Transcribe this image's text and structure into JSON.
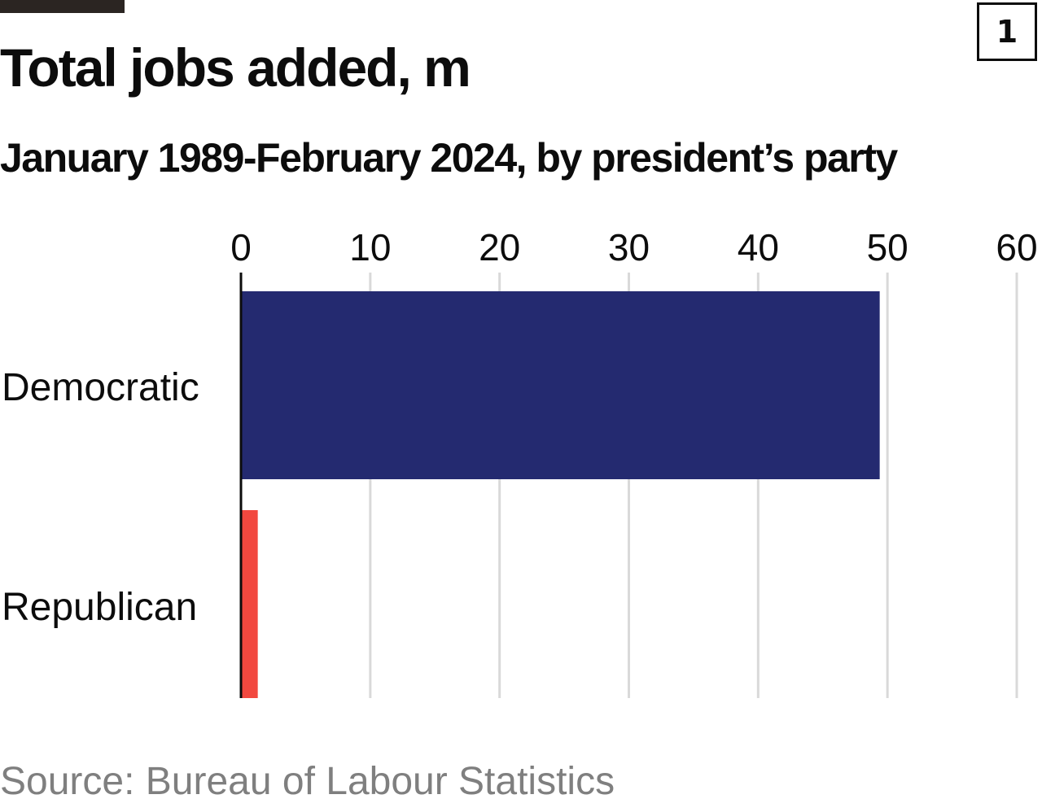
{
  "header": {
    "title": "Total jobs added, m",
    "subtitle": "January 1989-February 2024, by president’s party",
    "chart_number": "1"
  },
  "footer": {
    "source": "Source: Bureau of Labour Statistics"
  },
  "colors": {
    "democratic": "#242a70",
    "republican": "#f2483f",
    "grid": "#d9d9d9",
    "axis": "#0c0c0c",
    "rule": "#2b2522"
  },
  "chart_data": {
    "type": "bar",
    "orientation": "horizontal",
    "title": "Total jobs added, m",
    "subtitle": "January 1989-February 2024, by president’s party",
    "categories": [
      "Democratic",
      "Republican"
    ],
    "values": [
      49.4,
      1.3
    ],
    "xlim": [
      0,
      60
    ],
    "ticks": [
      0,
      10,
      20,
      30,
      40,
      50,
      60
    ],
    "tick_labels": [
      "0",
      "10",
      "20",
      "30",
      "40",
      "50",
      "60"
    ],
    "xaxis_position": "top",
    "grid": true,
    "legend": "none",
    "source": "Source: Bureau of Labour Statistics"
  }
}
